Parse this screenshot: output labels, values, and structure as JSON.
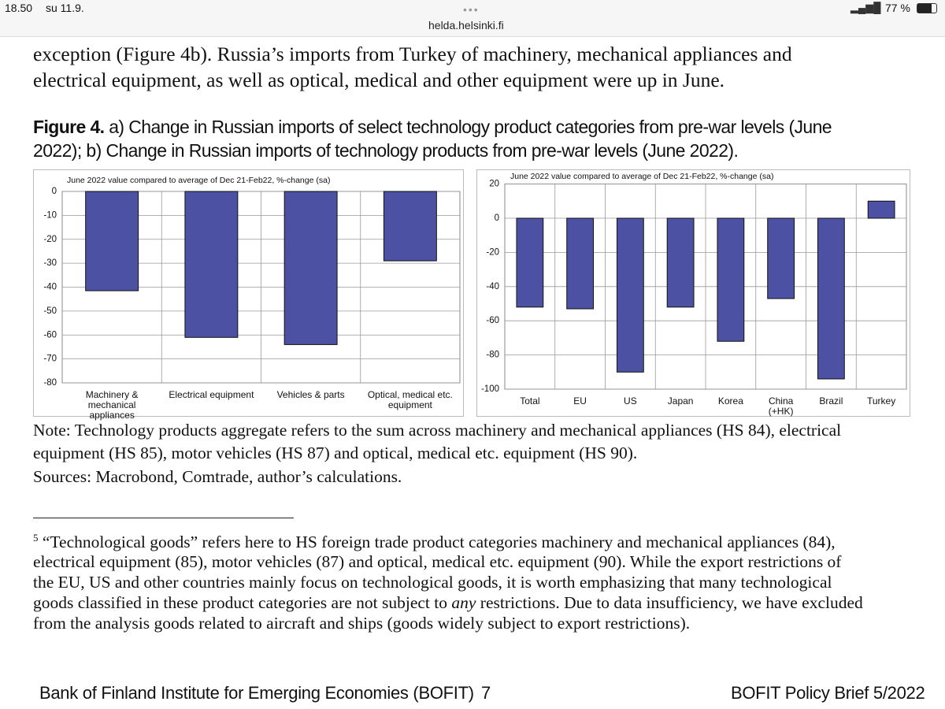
{
  "status_bar": {
    "time": "18.50",
    "date": "su 11.9.",
    "battery": "77 %"
  },
  "url": "helda.helsinki.fi",
  "paragraph": {
    "lines": [
      "exception (Figure 4b). Russia’s imports from Turkey of machinery, mechanical appliances and",
      "electrical equipment, as well as optical, medical and other equipment were up in June."
    ]
  },
  "figure": {
    "label": "Figure 4.",
    "caption_lines": [
      " a) Change in Russian imports of select technology product categories from pre-war levels (June",
      "2022); b) Change in Russian imports of technology products from pre-war levels (June 2022)."
    ]
  },
  "chart_data": [
    {
      "type": "bar",
      "subtitle": "June 2022 value compared to average of Dec 21-Feb22, %-change (sa)",
      "categories": [
        "Machinery & mechanical appliances",
        "Electrical equipment",
        "Vehicles & parts",
        "Optical, medical etc. equipment"
      ],
      "values": [
        -41.5,
        -61,
        -64,
        -29
      ],
      "color": "#4c51a4",
      "ylim": [
        -80,
        0
      ],
      "yticks": [
        0,
        -10,
        -20,
        -30,
        -40,
        -50,
        -60,
        -70,
        -80
      ],
      "grid": true
    },
    {
      "type": "bar",
      "subtitle": "June 2022 value compared to average of Dec 21-Feb22, %-change (sa)",
      "categories": [
        "Total",
        "EU",
        "US",
        "Japan",
        "Korea",
        "China (+HK)",
        "Brazil",
        "Turkey"
      ],
      "values": [
        -52,
        -53,
        -90,
        -52,
        -72,
        -47,
        -94,
        10
      ],
      "color": "#4c51a4",
      "ylim": [
        -100,
        20
      ],
      "yticks": [
        20,
        0,
        -20,
        -40,
        -60,
        -80,
        -100
      ],
      "grid": true
    }
  ],
  "note": {
    "lines": [
      "Note: Technology products aggregate refers to the sum across machinery and mechanical appliances (HS 84), electrical",
      "equipment (HS 85), motor vehicles (HS 87) and optical, medical etc. equipment (HS 90)."
    ],
    "sources": "Sources: Macrobond, Comtrade, author’s calculations."
  },
  "footnote": {
    "number": "5",
    "lines": [
      "“Technological goods” refers here to HS foreign trade product categories machinery and mechanical appliances (84),",
      "electrical equipment (85), motor vehicles (87) and optical, medical etc. equipment (90). While the export restrictions of",
      "the EU, US and other countries mainly focus on technological goods, it is worth emphasizing that many technological"
    ],
    "line4_before": "goods classified in these product categories are not subject to ",
    "line4_emphasis": "any",
    "line4_after": " restrictions. Due to data insufficiency, we have excluded",
    "line5": "from the analysis goods related to aircraft and ships (goods widely subject to export restrictions)."
  },
  "footer": {
    "left": "Bank of Finland Institute for Emerging Economies (BOFIT)",
    "page": "7",
    "right": "BOFIT Policy Brief 5/2022"
  }
}
